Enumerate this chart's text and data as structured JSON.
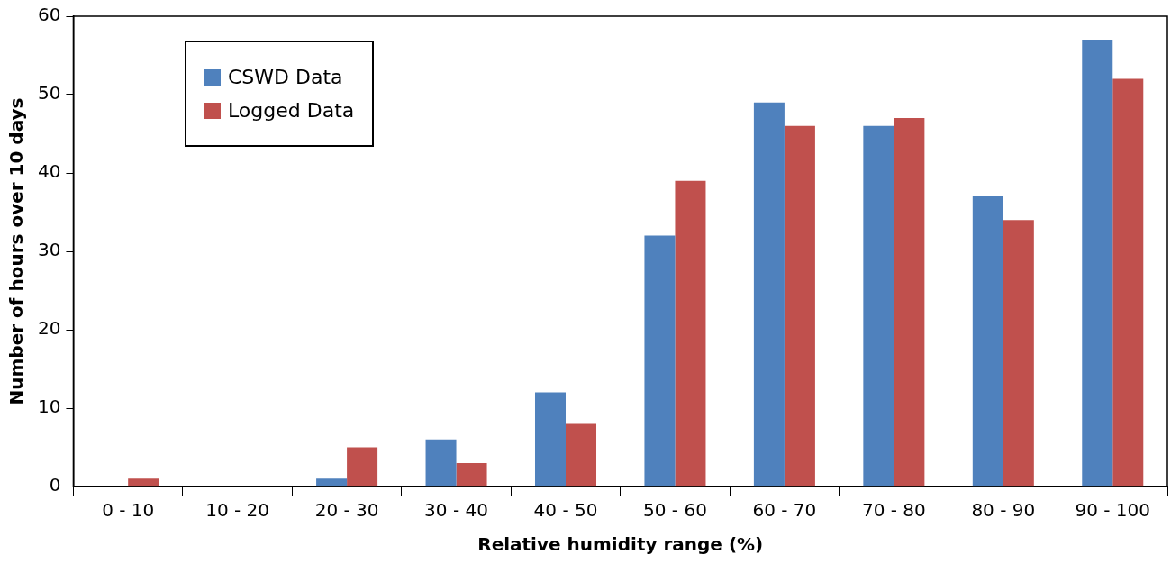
{
  "chart_data": {
    "type": "bar",
    "xlabel": "Relative humidity range (%)",
    "ylabel": "Number of hours over 10 days",
    "categories": [
      "0 - 10",
      "10 - 20",
      "20 - 30",
      "30 - 40",
      "40 - 50",
      "50 - 60",
      "60 - 70",
      "70 - 80",
      "80 - 90",
      "90 - 100"
    ],
    "series": [
      {
        "name": "CSWD Data",
        "color": "#4f81bd",
        "values": [
          0,
          0,
          1,
          6,
          12,
          32,
          49,
          46,
          37,
          57
        ]
      },
      {
        "name": "Logged Data",
        "color": "#c0504d",
        "values": [
          1,
          0,
          5,
          3,
          8,
          39,
          46,
          47,
          34,
          52
        ]
      }
    ],
    "ylim": [
      0,
      60
    ],
    "yticks": [
      0,
      10,
      20,
      30,
      40,
      50,
      60
    ],
    "grid": false,
    "legend": "top left"
  }
}
